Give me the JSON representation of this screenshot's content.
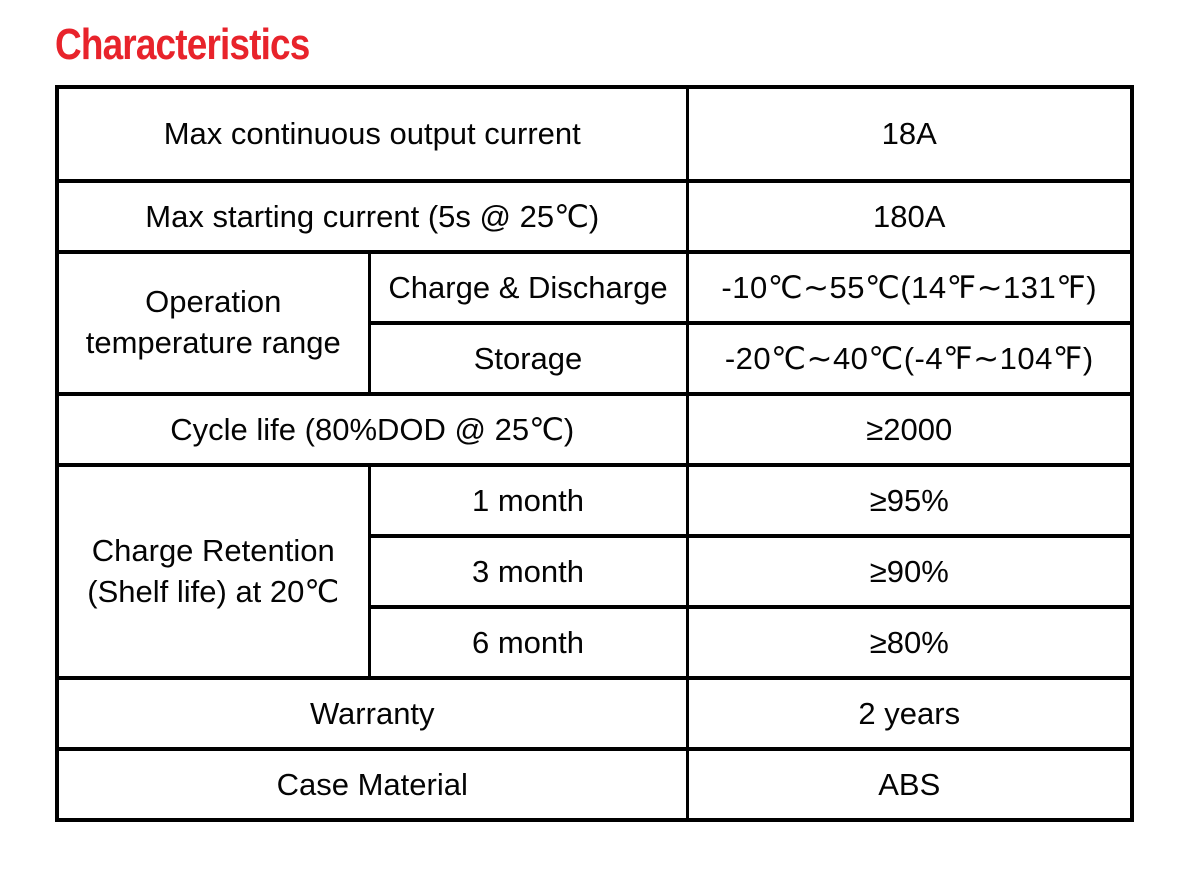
{
  "page": {
    "title": "Characteristics"
  },
  "colors": {
    "title_red": "#e8232b",
    "border": "#000000",
    "text": "#040404",
    "background": "#ffffff"
  },
  "table": {
    "rows": [
      {
        "label": "Max continuous output current",
        "value": "18A"
      },
      {
        "label": "Max starting current (5s @ 25℃)",
        "value": "180A"
      },
      {
        "group": "Operation\ntemperature range",
        "sub": "Charge & Discharge",
        "value": "-10℃∼55℃(14℉∼131℉)"
      },
      {
        "sub": "Storage",
        "value": "-20℃∼40℃(-4℉∼104℉)"
      },
      {
        "label": "Cycle life (80%DOD @ 25℃)",
        "value": "≥2000"
      },
      {
        "group": "Charge Retention\n(Shelf life) at 20℃",
        "sub": "1 month",
        "value": "≥95%"
      },
      {
        "sub": "3 month",
        "value": "≥90%"
      },
      {
        "sub": "6 month",
        "value": "≥80%"
      },
      {
        "label": "Warranty",
        "value": "2 years"
      },
      {
        "label": "Case Material",
        "value": "ABS"
      }
    ]
  }
}
